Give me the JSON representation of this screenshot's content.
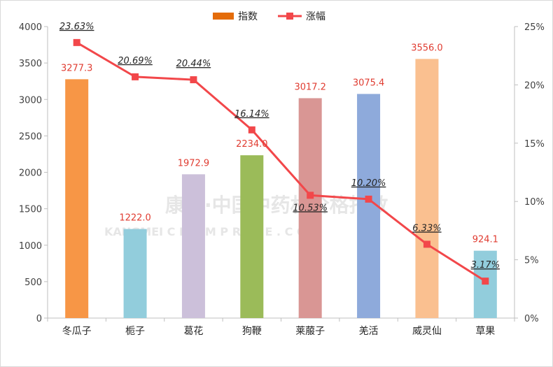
{
  "chart_data": {
    "type": "bar",
    "categories": [
      "冬瓜子",
      "栀子",
      "葛花",
      "狗鞭",
      "莱菔子",
      "羌活",
      "威灵仙",
      "草果"
    ],
    "series": [
      {
        "name": "指数",
        "type": "bar",
        "axis": "left",
        "values": [
          3277.3,
          1222.0,
          1972.9,
          2234.0,
          3017.2,
          3075.4,
          3556.0,
          924.1
        ],
        "labels": [
          "3277.3",
          "1222.0",
          "1972.9",
          "2234.0",
          "3017.2",
          "3075.4",
          "3556.0",
          "924.1"
        ],
        "colors": [
          "#f79646",
          "#92cddc",
          "#ccc0da",
          "#9bbb59",
          "#d99694",
          "#8eaadb",
          "#fac090",
          "#92cddc"
        ],
        "legend_color": "#e46c0a"
      },
      {
        "name": "涨幅",
        "type": "line",
        "axis": "right",
        "values": [
          23.63,
          20.69,
          20.44,
          16.14,
          10.53,
          10.2,
          6.33,
          3.17
        ],
        "labels": [
          "23.63%",
          "20.69%",
          "20.44%",
          "16.14%",
          "10.53%",
          "10.20%",
          "6.33%",
          "3.17%"
        ],
        "color": "#f2474a"
      }
    ],
    "y_left": {
      "min": 0,
      "max": 4000,
      "step": 500,
      "ticks": [
        "0",
        "500",
        "1000",
        "1500",
        "2000",
        "2500",
        "3000",
        "3500",
        "4000"
      ]
    },
    "y_right": {
      "min": 0,
      "max": 25,
      "step": 5,
      "ticks": [
        "0%",
        "5%",
        "10%",
        "15%",
        "20%",
        "25%"
      ]
    },
    "value_label_color": "#e03c31",
    "legend_placement": "top-center",
    "grid": false
  },
  "watermark": {
    "line1": "康美·中国中药材价格指数",
    "line2": "KANGMEI  C N K M P R I C E . C O M"
  }
}
